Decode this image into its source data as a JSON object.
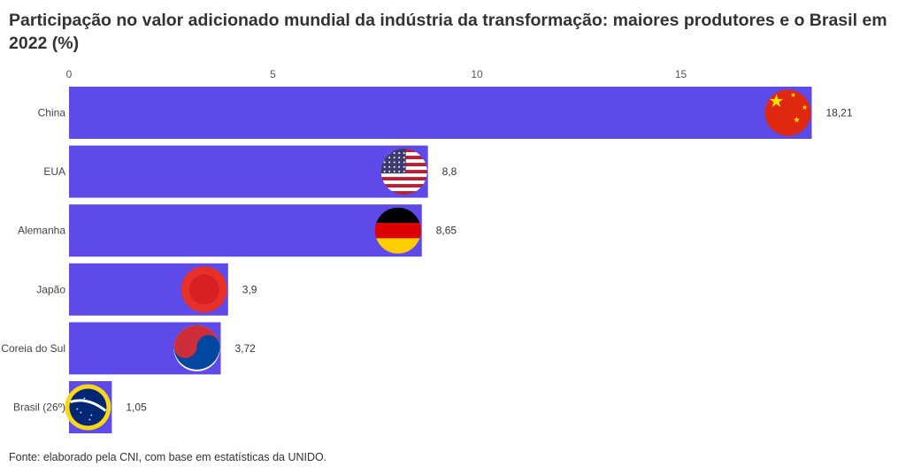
{
  "source": "Fonte: elaborado pela CNI, com base em estatísticas da UNIDO.",
  "chart_data": {
    "type": "bar",
    "orientation": "horizontal",
    "title": "Participação no valor adicionado mundial da indústria da transformação: maiores produtores e o Brasil em 2022 (%)",
    "categories": [
      "China",
      "EUA",
      "Alemanha",
      "Japão",
      "Coreia do Sul",
      "Brasil (26º)"
    ],
    "values": [
      18.21,
      8.8,
      8.65,
      3.9,
      3.72,
      1.05
    ],
    "value_labels": [
      "18,21",
      "8,8",
      "8,65",
      "3,9",
      "3,72",
      "1,05"
    ],
    "flags": [
      "china-flag-icon",
      "usa-flag-icon",
      "germany-flag-icon",
      "japan-flag-icon",
      "south-korea-flag-icon",
      "brazil-flag-icon"
    ],
    "xticks": [
      0,
      5,
      10,
      15
    ],
    "xtick_labels": [
      "0",
      "5",
      "10",
      "15"
    ],
    "xlim": [
      0,
      18.5
    ],
    "axis_position": "top",
    "grid": false,
    "legend": false,
    "bar_color": "#5e4ae8"
  }
}
